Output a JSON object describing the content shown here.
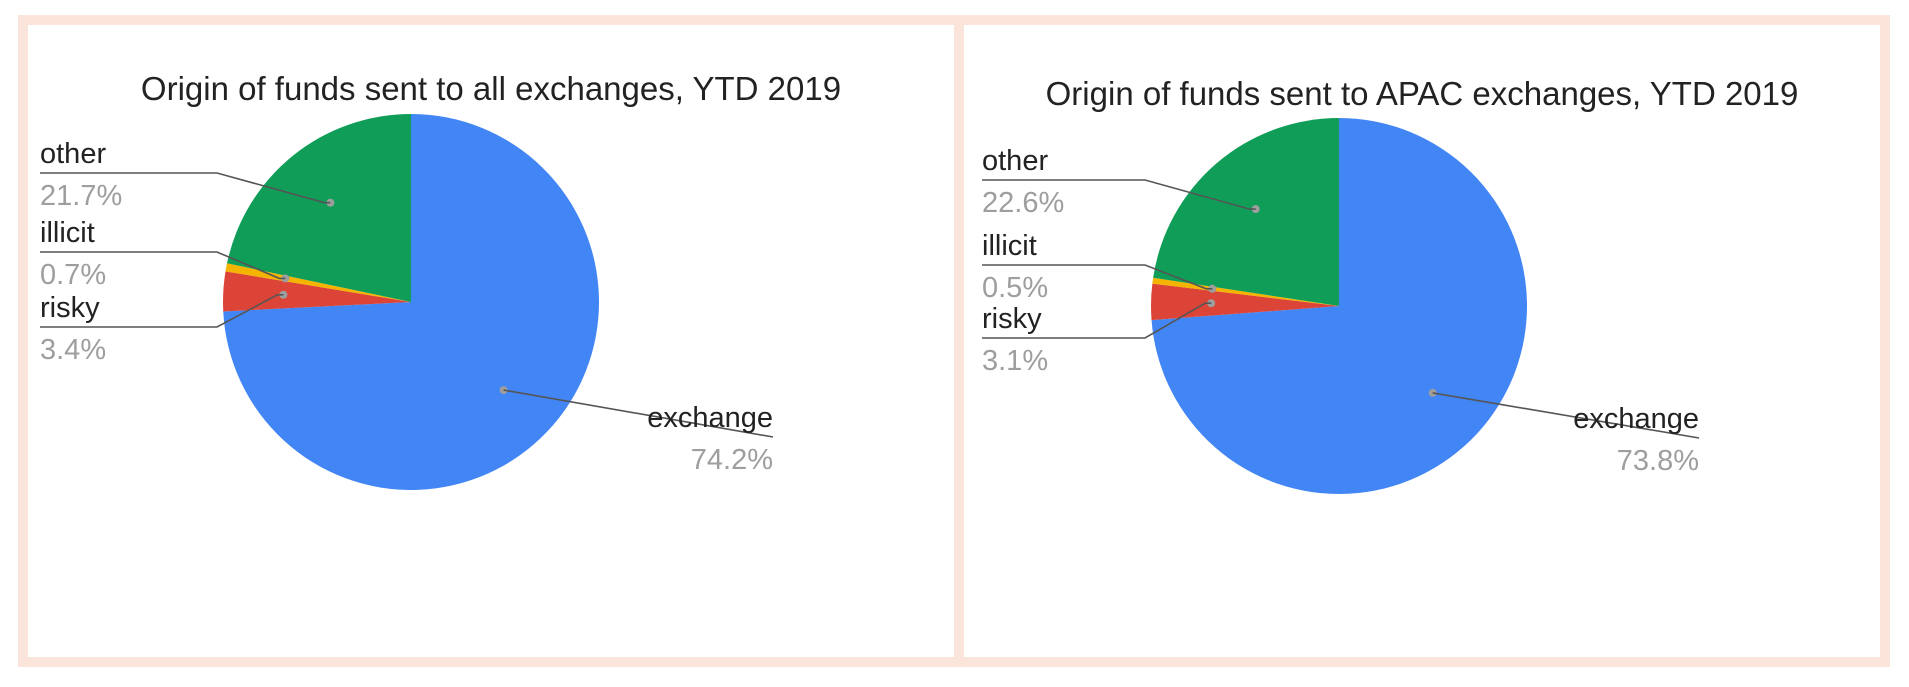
{
  "chart_data": [
    {
      "type": "pie",
      "title": "Origin of funds sent to all exchanges, YTD 2019",
      "start_angle_deg": 0,
      "direction": "clockwise",
      "slices": [
        {
          "label": "exchange",
          "percent": 74.2,
          "value_label": "74.2%",
          "color": "#4285f4",
          "label_side": "right"
        },
        {
          "label": "risky",
          "percent": 3.4,
          "value_label": "3.4%",
          "color": "#db4437",
          "label_side": "left"
        },
        {
          "label": "illicit",
          "percent": 0.7,
          "value_label": "0.7%",
          "color": "#f4b400",
          "label_side": "left"
        },
        {
          "label": "other",
          "percent": 21.7,
          "value_label": "21.7%",
          "color": "#0f9d58",
          "label_side": "left"
        }
      ]
    },
    {
      "type": "pie",
      "title": "Origin of funds sent to APAC exchanges, YTD 2019",
      "start_angle_deg": 0,
      "direction": "clockwise",
      "slices": [
        {
          "label": "exchange",
          "percent": 73.8,
          "value_label": "73.8%",
          "color": "#4285f4",
          "label_side": "right"
        },
        {
          "label": "risky",
          "percent": 3.1,
          "value_label": "3.1%",
          "color": "#db4437",
          "label_side": "left"
        },
        {
          "label": "illicit",
          "percent": 0.5,
          "value_label": "0.5%",
          "color": "#f4b400",
          "label_side": "left"
        },
        {
          "label": "other",
          "percent": 22.6,
          "value_label": "22.6%",
          "color": "#0f9d58",
          "label_side": "left"
        }
      ]
    }
  ]
}
